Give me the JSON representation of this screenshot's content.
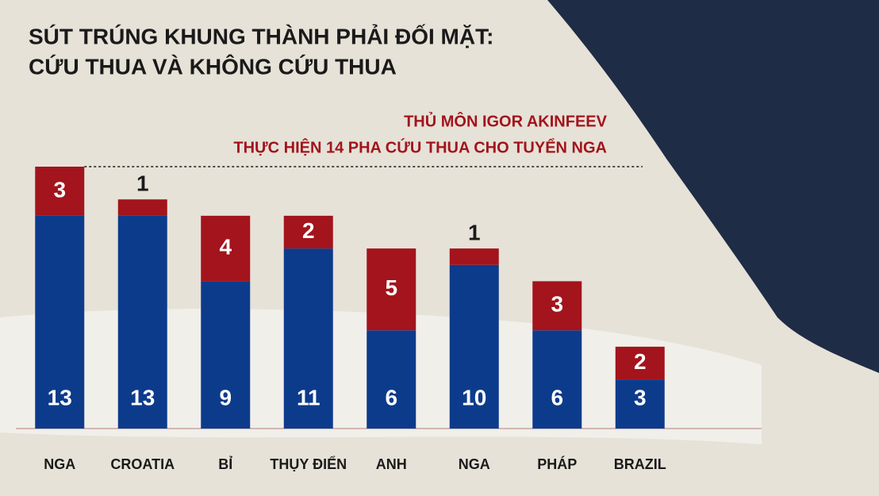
{
  "chart_data": {
    "type": "stacked-bar",
    "title": [
      "SÚT TRÚNG KHUNG THÀNH PHẢI ĐỐI MẶT:",
      "CỨU THUA VÀ KHÔNG CỨU THUA"
    ],
    "annotation": [
      "THỦ MÔN IGOR AKINFEEV",
      "THỰC HIỆN 14 PHA CỨU THUA CHO TUYỂN NGA"
    ],
    "annotation_line": 16,
    "categories": [
      "NGA",
      "CROATIA",
      "BỈ",
      "THỤY ĐIỂN",
      "ANH",
      "NGA",
      "PHÁP",
      "BRAZIL"
    ],
    "series": [
      {
        "color": "#0d3b8c",
        "values": [
          13,
          13,
          9,
          11,
          6,
          10,
          6,
          3
        ]
      },
      {
        "color": "#a3141c",
        "values": [
          3,
          1,
          4,
          2,
          5,
          1,
          3,
          2
        ]
      }
    ],
    "ylim": [
      0,
      16
    ]
  }
}
